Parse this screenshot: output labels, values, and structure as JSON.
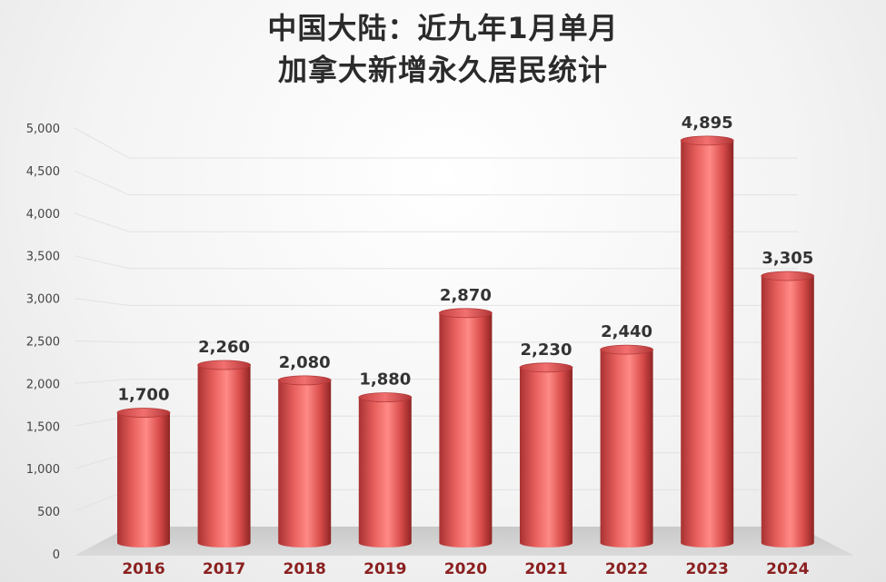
{
  "chart_data": {
    "type": "bar",
    "title_lines": [
      "中国大陆：近九年1月单月",
      "加拿大新增永久居民统计"
    ],
    "categories": [
      "2016",
      "2017",
      "2018",
      "2019",
      "2020",
      "2021",
      "2022",
      "2023",
      "2024"
    ],
    "values": [
      1700,
      2260,
      2080,
      1880,
      2870,
      2230,
      2440,
      4895,
      3305
    ],
    "value_labels": [
      "1,700",
      "2,260",
      "2,080",
      "1,880",
      "2,870",
      "2,230",
      "2,440",
      "4,895",
      "3,305"
    ],
    "y_ticks": [
      0,
      500,
      1000,
      1500,
      2000,
      2500,
      3000,
      3500,
      4000,
      4500,
      5000
    ],
    "y_tick_labels": [
      "0",
      "500",
      "1,000",
      "1,500",
      "2,000",
      "2,500",
      "3,000",
      "3,500",
      "4,000",
      "4,500",
      "5,000"
    ],
    "ylim": [
      0,
      5000
    ],
    "grid": true,
    "bar_color": "#e85a5a",
    "category_label_color": "#8b2020",
    "value_label_color": "#333333"
  }
}
